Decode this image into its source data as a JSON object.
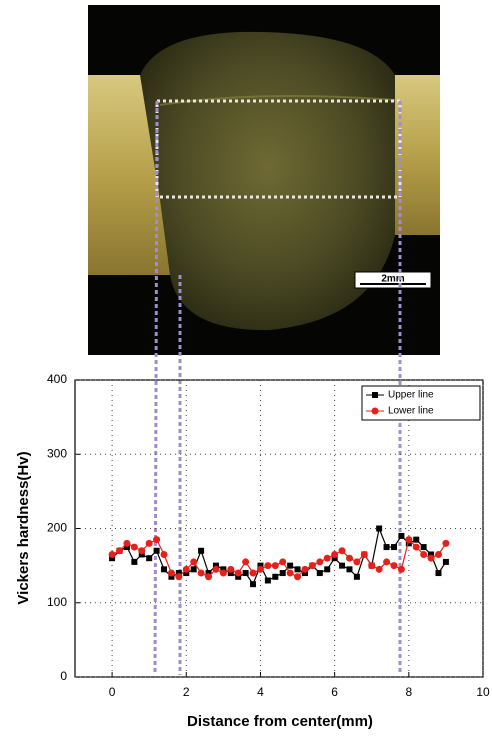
{
  "chart_data": {
    "type": "line",
    "scale_label": "2mm",
    "xlabel": "Distance from center(mm)",
    "ylabel": "Vickers hardness(Hv)",
    "xlim": [
      -1,
      10
    ],
    "ylim": [
      0,
      400
    ],
    "xticks": [
      0,
      2,
      4,
      6,
      8,
      10
    ],
    "yticks": [
      0,
      100,
      200,
      300,
      400
    ],
    "grid": true,
    "legend": "upper right",
    "x": [
      0,
      0.2,
      0.4,
      0.6,
      0.8,
      1,
      1.2,
      1.4,
      1.6,
      1.8,
      2,
      2.2,
      2.4,
      2.6,
      2.8,
      3,
      3.2,
      3.4,
      3.6,
      3.8,
      4,
      4.2,
      4.4,
      4.6,
      4.8,
      5,
      5.2,
      5.4,
      5.6,
      5.8,
      6,
      6.2,
      6.4,
      6.6,
      6.8,
      7,
      7.2,
      7.4,
      7.6,
      7.8,
      8,
      8.2,
      8.4,
      8.6,
      8.8,
      9
    ],
    "series": [
      {
        "name": "Upper line",
        "color": "#000000",
        "marker": "square",
        "values": [
          160,
          170,
          175,
          155,
          165,
          160,
          170,
          145,
          135,
          140,
          140,
          145,
          170,
          140,
          150,
          145,
          140,
          135,
          140,
          125,
          150,
          130,
          135,
          140,
          150,
          145,
          140,
          150,
          140,
          145,
          160,
          150,
          145,
          135,
          165,
          150,
          200,
          175,
          175,
          190,
          180,
          185,
          175,
          165,
          140,
          155
        ]
      },
      {
        "name": "Lower line",
        "color": "#e8201a",
        "marker": "circle",
        "values": [
          165,
          170,
          180,
          175,
          170,
          180,
          185,
          165,
          140,
          135,
          145,
          155,
          140,
          135,
          145,
          140,
          145,
          140,
          155,
          140,
          145,
          150,
          150,
          155,
          140,
          135,
          145,
          150,
          155,
          160,
          165,
          170,
          160,
          155,
          165,
          150,
          145,
          155,
          150,
          145,
          185,
          175,
          165,
          160,
          165,
          180
        ]
      }
    ]
  }
}
